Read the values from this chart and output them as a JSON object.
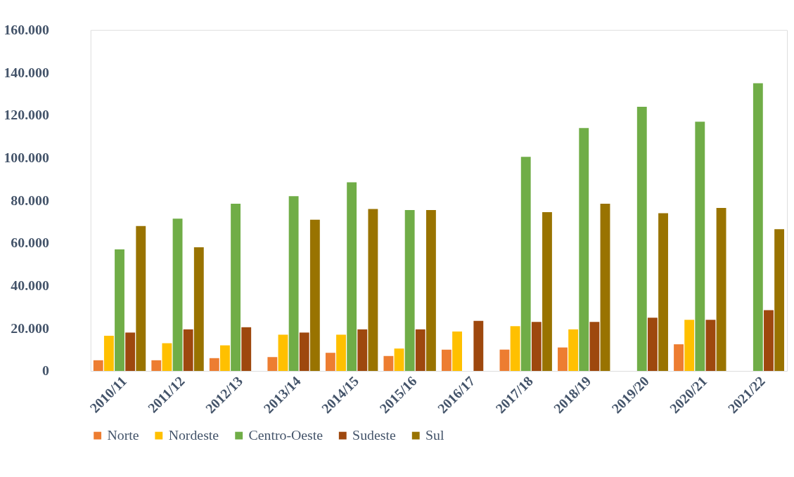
{
  "chart_data": {
    "type": "bar",
    "categories": [
      "2010/11",
      "2011/12",
      "2012/13",
      "2013/14",
      "2014/15",
      "2015/16",
      "2016/17",
      "2017/18",
      "2018/19",
      "2019/20",
      "2020/21",
      "2021/22"
    ],
    "series": [
      {
        "name": "Norte",
        "color": "#ed7d31",
        "values": [
          5000,
          5000,
          6000,
          6500,
          8500,
          7000,
          10000,
          10000,
          11000,
          null,
          12500,
          null
        ]
      },
      {
        "name": "Nordeste",
        "color": "#ffc000",
        "values": [
          16500,
          13000,
          12000,
          17000,
          17000,
          10500,
          18500,
          21000,
          19500,
          null,
          24000,
          null
        ]
      },
      {
        "name": "Centro-Oeste",
        "color": "#70ad47",
        "values": [
          57000,
          71500,
          78500,
          82000,
          88500,
          75500,
          null,
          100500,
          114000,
          124000,
          117000,
          135000
        ]
      },
      {
        "name": "Sudeste",
        "color": "#9e480e",
        "values": [
          18000,
          19500,
          20500,
          18000,
          19500,
          19500,
          23500,
          23000,
          23000,
          25000,
          24000,
          28500
        ]
      },
      {
        "name": "Sul",
        "color": "#997300",
        "values": [
          68000,
          58000,
          null,
          71000,
          76000,
          75500,
          null,
          74500,
          78500,
          74000,
          76500,
          66500
        ]
      }
    ],
    "ylim": [
      0,
      160000
    ],
    "yticks": [
      0,
      {
        "value": 20000,
        "label": "20.000"
      },
      {
        "value": 40000,
        "label": "40.000"
      },
      {
        "value": 60000,
        "label": "60.000"
      },
      {
        "value": 80000,
        "label": "80.000"
      },
      {
        "value": 100000,
        "label": "100.000"
      },
      {
        "value": 120000,
        "label": "120.000"
      },
      {
        "value": 140000,
        "label": "140.000"
      },
      {
        "value": 160000,
        "label": "160.000"
      }
    ],
    "grid": false,
    "legend": "bottom"
  }
}
